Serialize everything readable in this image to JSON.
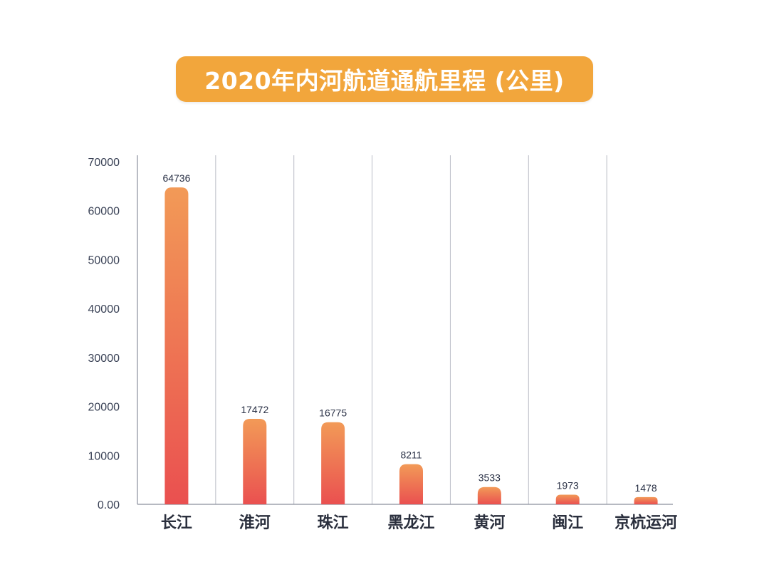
{
  "chart_data": {
    "type": "bar",
    "title": "2020年内河航道通航里程 (公里)",
    "categories": [
      "长江",
      "淮河",
      "珠江",
      "黑龙江",
      "黄河",
      "闽江",
      "京杭运河"
    ],
    "values": [
      64736,
      17472,
      16775,
      8211,
      3533,
      1973,
      1478
    ],
    "data_labels": [
      "64736",
      "17472",
      "16775",
      "8211",
      "3533",
      "1973",
      "1478"
    ],
    "ylim": [
      0,
      70000
    ],
    "yticks": [
      0,
      10000,
      20000,
      30000,
      40000,
      50000,
      60000,
      70000
    ],
    "ytick_labels": [
      "0.00",
      "10000",
      "20000",
      "30000",
      "40000",
      "50000",
      "60000",
      "70000"
    ],
    "xlabel": "",
    "ylabel": "",
    "grid": "vertical separators",
    "colors": {
      "title_bg": "#f2a63c",
      "bar_top": "#f29a57",
      "bar_bottom": "#ea5050",
      "grid": "#b9bcc6",
      "axis": "#8a8f9c"
    }
  }
}
